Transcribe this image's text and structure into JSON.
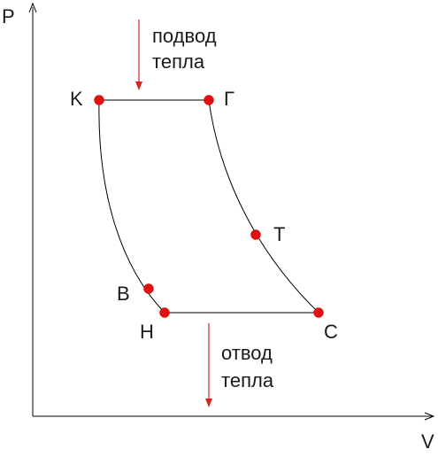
{
  "axes": {
    "y_label": "P",
    "x_label": "V"
  },
  "annotations": {
    "heat_in": [
      "подвод",
      "тепла"
    ],
    "heat_out": [
      "отвод",
      "тепла"
    ]
  },
  "points": [
    {
      "label": "K"
    },
    {
      "label": "Г"
    },
    {
      "label": "T"
    },
    {
      "label": "C"
    },
    {
      "label": "H"
    },
    {
      "label": "B"
    }
  ]
}
